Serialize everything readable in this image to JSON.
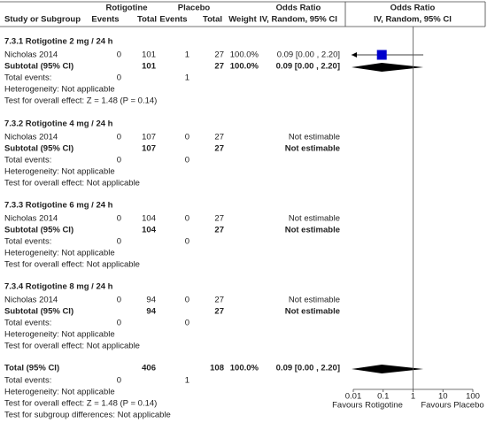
{
  "header": {
    "group_rotigotine": "Rotigotine",
    "group_placebo": "Placebo",
    "group_or": "Odds Ratio",
    "group_forest": "Odds Ratio",
    "columns": [
      "Study or Subgroup",
      "Events",
      "Total",
      "Events",
      "Total",
      "Weight",
      "IV, Random, 95% CI"
    ],
    "forest_method": "IV, Random, 95% CI"
  },
  "subgroups": [
    {
      "title": "7.3.1 Rotigotine 2 mg / 24 h",
      "study": {
        "name": "Nicholas 2014",
        "events_r": 0,
        "total_r": 101,
        "events_p": 1,
        "total_p": 27,
        "weight": "100.0%",
        "or": "0.09 [0.00 , 2.20]",
        "estimate": {
          "or": 0.09,
          "lower": 0,
          "upper": 2.2
        }
      },
      "subtotal": {
        "label": "Subtotal (95% CI)",
        "total_r": 101,
        "total_p": 27,
        "weight": "100.0%",
        "or": "0.09 [0.00 , 2.20]",
        "estimate": {
          "or": 0.09,
          "lower": 0,
          "upper": 2.2
        }
      },
      "total_events": {
        "label": "Total events:",
        "events_r": 0,
        "events_p": 1
      },
      "heterogeneity": "Heterogeneity: Not applicable",
      "overall_effect": "Test for overall effect: Z = 1.48 (P = 0.14)"
    },
    {
      "title": "7.3.2 Rotigotine 4 mg / 24 h",
      "study": {
        "name": "Nicholas 2014",
        "events_r": 0,
        "total_r": 107,
        "events_p": 0,
        "total_p": 27,
        "or": "Not estimable"
      },
      "subtotal": {
        "label": "Subtotal (95% CI)",
        "total_r": 107,
        "total_p": 27,
        "or": "Not estimable"
      },
      "total_events": {
        "label": "Total events:",
        "events_r": 0,
        "events_p": 0
      },
      "heterogeneity": "Heterogeneity: Not applicable",
      "overall_effect": "Test for overall effect: Not applicable"
    },
    {
      "title": "7.3.3 Rotigotine 6 mg / 24 h",
      "study": {
        "name": "Nicholas 2014",
        "events_r": 0,
        "total_r": 104,
        "events_p": 0,
        "total_p": 27,
        "or": "Not estimable"
      },
      "subtotal": {
        "label": "Subtotal (95% CI)",
        "total_r": 104,
        "total_p": 27,
        "or": "Not estimable"
      },
      "total_events": {
        "label": "Total events:",
        "events_r": 0,
        "events_p": 0
      },
      "heterogeneity": "Heterogeneity: Not applicable",
      "overall_effect": "Test for overall effect: Not applicable"
    },
    {
      "title": "7.3.4 Rotigotine 8 mg / 24 h",
      "study": {
        "name": "Nicholas 2014",
        "events_r": 0,
        "total_r": 94,
        "events_p": 0,
        "total_p": 27,
        "or": "Not estimable"
      },
      "subtotal": {
        "label": "Subtotal (95% CI)",
        "total_r": 94,
        "total_p": 27,
        "or": "Not estimable"
      },
      "total_events": {
        "label": "Total events:",
        "events_r": 0,
        "events_p": 0
      },
      "heterogeneity": "Heterogeneity: Not applicable",
      "overall_effect": "Test for overall effect: Not applicable"
    }
  ],
  "total": {
    "label": "Total (95% CI)",
    "total_r": 406,
    "total_p": 108,
    "weight": "100.0%",
    "or": "0.09 [0.00 , 2.20]",
    "estimate": {
      "or": 0.09,
      "lower": 0,
      "upper": 2.2
    },
    "total_events": {
      "label": "Total events:",
      "events_r": 0,
      "events_p": 1
    },
    "heterogeneity": "Heterogeneity: Not applicable",
    "overall_effect": "Test for overall effect: Z = 1.48 (P = 0.14)",
    "subgroup_differences": "Test for subgroup differences: Not applicable"
  },
  "forest": {
    "log_scale": true,
    "xlim": [
      0.01,
      100
    ],
    "xticks": [
      0.01,
      0.1,
      1,
      10,
      100
    ],
    "reference": 1,
    "favours_left": "Favours Rotigotine",
    "favours_right": "Favours Placebo",
    "color": "#0000cc"
  }
}
